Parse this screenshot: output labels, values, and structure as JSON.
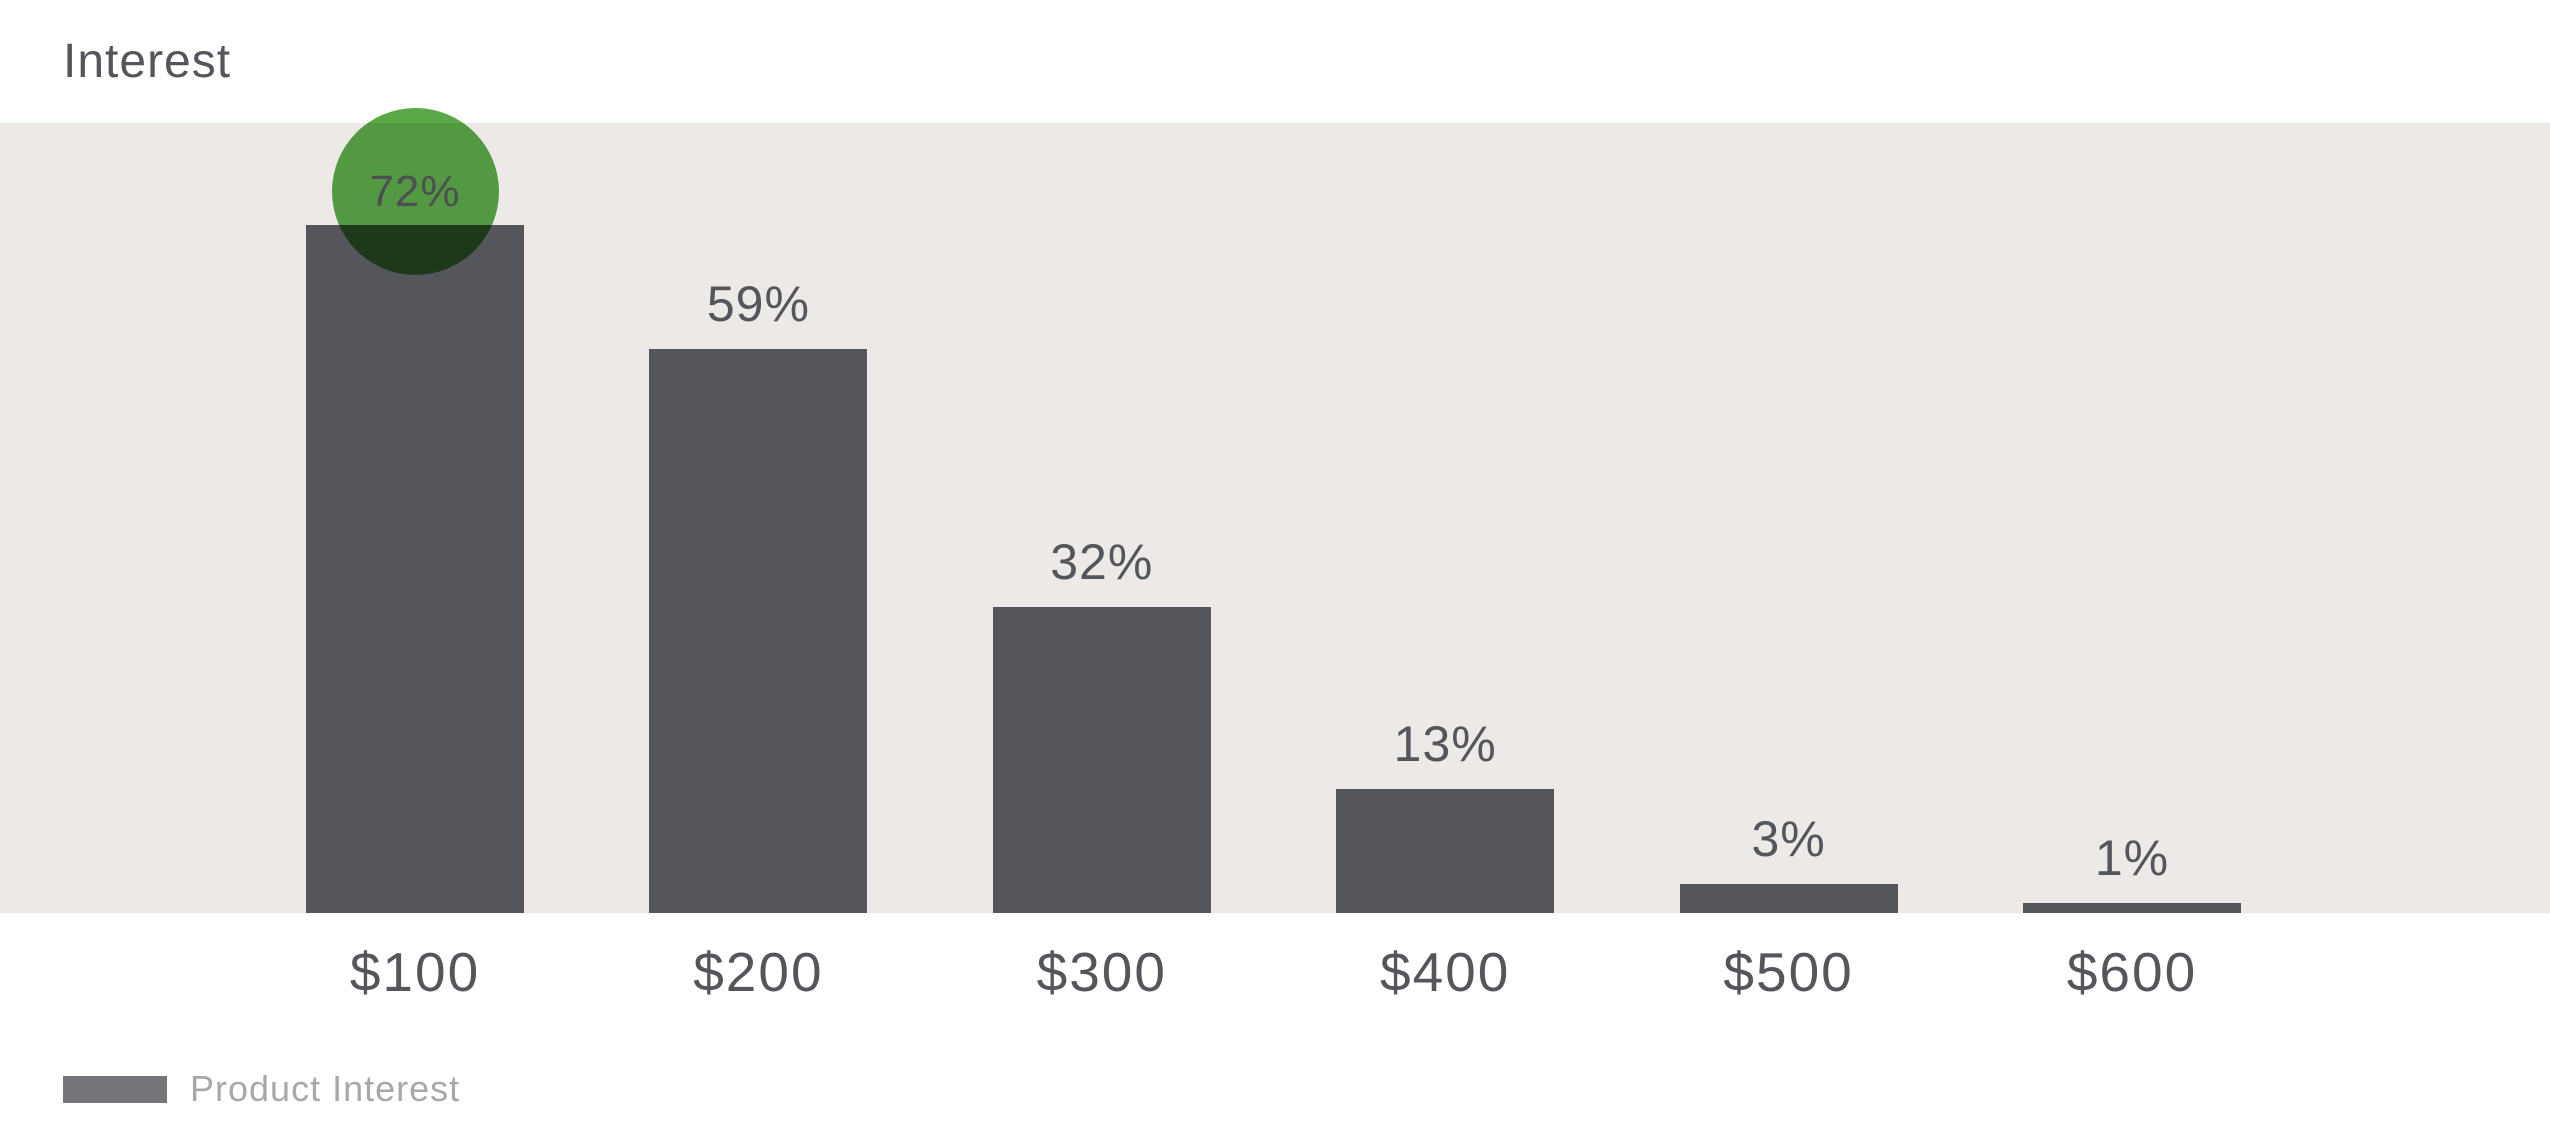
{
  "header": {
    "title": "Interest"
  },
  "legend": {
    "label": "Product Interest"
  },
  "chart_data": {
    "type": "bar",
    "title": "Interest",
    "categories": [
      "$100",
      "$200",
      "$300",
      "$400",
      "$500",
      "$600"
    ],
    "values": [
      72,
      59,
      32,
      13,
      3,
      1
    ],
    "value_labels": [
      "72%",
      "59%",
      "32%",
      "13%",
      "3%",
      "1%"
    ],
    "series": [
      {
        "name": "Product Interest",
        "values": [
          72,
          59,
          32,
          13,
          3,
          1
        ]
      }
    ],
    "xlabel": "",
    "ylabel": "",
    "ylim": [
      0,
      82.5
    ],
    "grid": false,
    "axis_lines": false,
    "legend_position": "bottom-left",
    "highlight": {
      "category": "$100",
      "value_label": "72%",
      "marker": "green-circle"
    }
  },
  "colors": {
    "bar": "#54565C",
    "plot_background": "#ECE9E7",
    "page_background": "#FFFFFF",
    "highlight_green": "#5AA847",
    "text_dark": "#54565C",
    "legend_text": "#A8A8AC",
    "legend_swatch": "#75767A"
  }
}
